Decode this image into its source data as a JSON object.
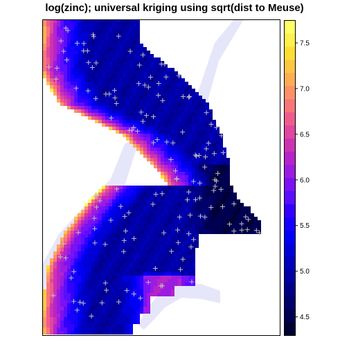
{
  "chart_data": {
    "type": "heatmap",
    "title": "log(zinc); universal kriging using sqrt(dist to Meuse)",
    "xlabel": "",
    "ylabel": "",
    "grid": false,
    "legend": "right",
    "colorbar": {
      "ticks": [
        4.5,
        5.0,
        5.5,
        6.0,
        6.5,
        7.0,
        7.5
      ],
      "range": [
        4.3,
        7.75
      ],
      "palette": [
        "#000033",
        "#000050",
        "#00006b",
        "#000087",
        "#0000a3",
        "#0000bd",
        "#0000d9",
        "#0000f5",
        "#1500ff",
        "#3300ff",
        "#5a0eff",
        "#7b11f5",
        "#9b1ce0",
        "#b624c9",
        "#cc33b3",
        "#df47a0",
        "#ee5c8d",
        "#f77679",
        "#fd9167",
        "#ffac55",
        "#ffc644",
        "#ffde33",
        "#fff04f",
        "#ffff66"
      ]
    },
    "river": {
      "name": "Meuse",
      "color": "#e6e6fa"
    },
    "observations": {
      "marker": "+",
      "color": "#c0c0c0",
      "count": 155
    },
    "field_summary": {
      "low": 4.4,
      "high": 7.6,
      "description_values": "kriged log(zinc) highest along the river bank, lowest inland to the east"
    }
  }
}
